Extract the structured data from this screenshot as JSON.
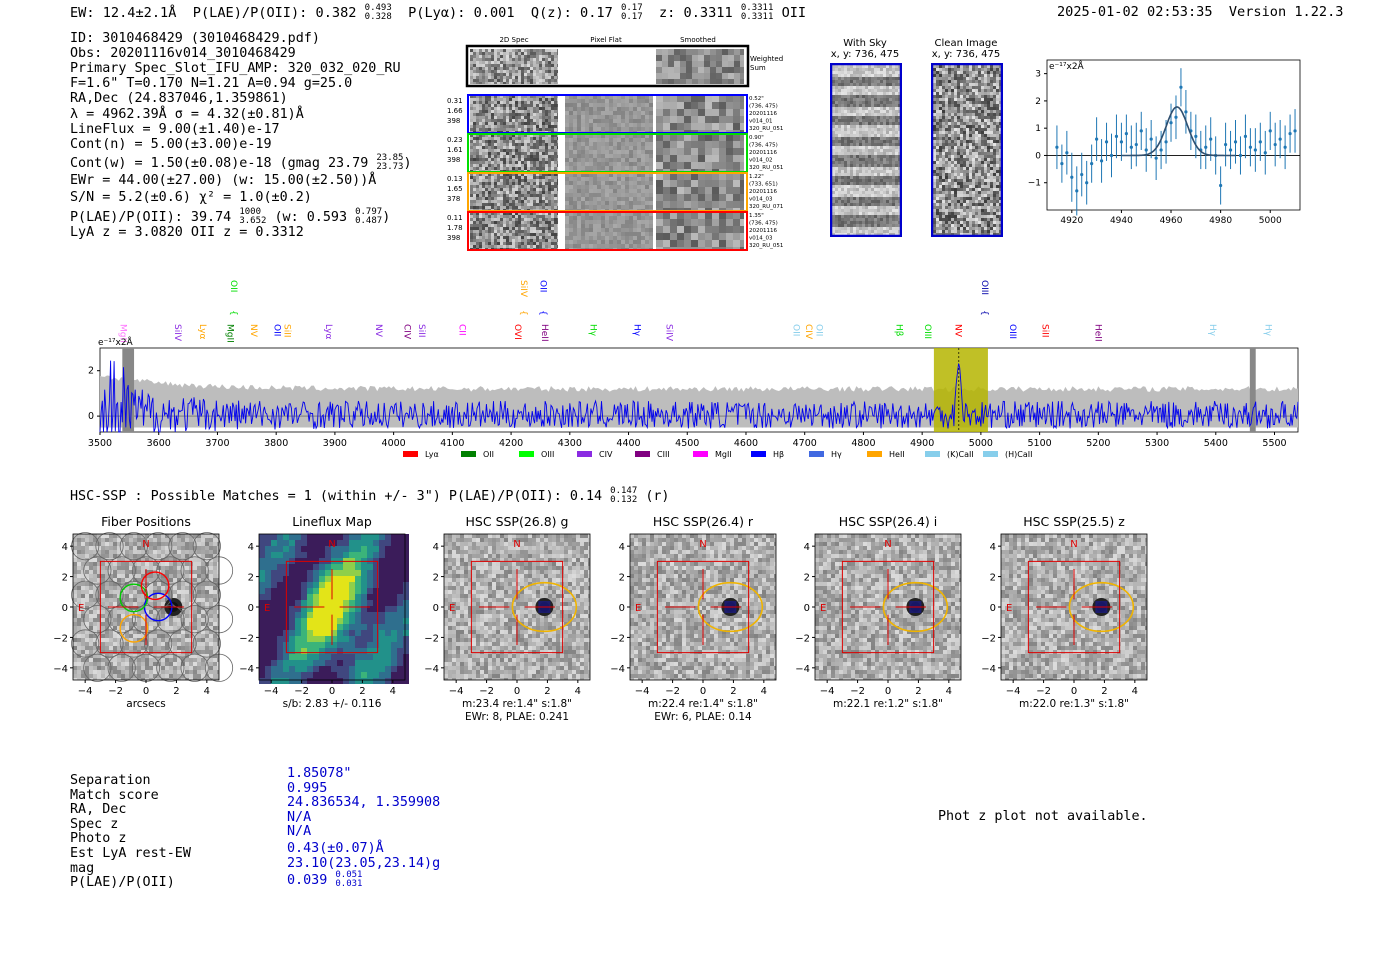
{
  "header": {
    "ew": "EW: 12.4±2.1Å",
    "plae": "P(LAE)/P(OII): 0.382",
    "plae_hi": "0.493",
    "plae_lo": "0.328",
    "plya": "P(Lyα): 0.001",
    "qz": "Q(z): 0.17",
    "qz_hi": "0.17",
    "qz_lo": "0.17",
    "z": "z: 0.3311",
    "z_hi": "0.3311",
    "z_lo": "0.3311",
    "line": "OII",
    "timestamp": "2025-01-02 02:53:35",
    "version": "Version 1.22.3"
  },
  "info": {
    "id": "ID: 3010468429 (3010468429.pdf)",
    "obs": "Obs: 20201116v014_3010468429",
    "primary": "Primary Spec_Slot_IFU_AMP: 320_032_020_RU",
    "fwhm": "F=1.6\"  T=0.170  N=1.21  A=0.94  g=25.0",
    "radec": "RA,Dec (24.837046,1.359861)",
    "lambda": "λ = 4962.39Å   σ = 4.32(±0.81)Å",
    "lineflux": "LineFlux = 9.00(±1.40)e-17",
    "contn": "Cont(n) = 5.00(±3.00)e-19",
    "contw": "Cont(w) = 1.50(±0.08)e-18 (gmag 23.79",
    "contw_hi": "23.85",
    "contw_lo": "23.73",
    "contw_end": ")",
    "ewr": "EWr = 44.00(±27.00) (w: 15.00(±2.50))Å",
    "sn": "S/N = 5.2(±0.6)  χ² = 1.0(±0.2)",
    "plae": "P(LAE)/P(OII): 39.74",
    "plae_hi": "1000",
    "plae_lo": "3.652",
    "plae_w": "(w: 0.593",
    "plae_w_hi": "0.797",
    "plae_w_lo": "0.487",
    "plae_w_end": ")",
    "lyaz": "LyA z = 3.0820  OII z = 0.3312"
  },
  "spec2d": {
    "col_labels": [
      "2D Spec",
      "Pixel Flat",
      "Smoothed"
    ],
    "weighted_label": "Weighted Sum",
    "rows": [
      {
        "stats": [
          "0.31",
          "1.66",
          "398"
        ],
        "info": [
          "0.52\"",
          "(736, 475)",
          "20201116",
          "v014_01",
          "320_RU_051"
        ],
        "color": "#0000ff"
      },
      {
        "stats": [
          "0.23",
          "1.61",
          "398"
        ],
        "info": [
          "0.90\"",
          "(736, 475)",
          "20201116",
          "v014_02",
          "320_RU_051"
        ],
        "color": "#00dd00"
      },
      {
        "stats": [
          "0.13",
          "1.65",
          "378"
        ],
        "info": [
          "1.22\"",
          "(733, 651)",
          "20201116",
          "v014_03",
          "320_RU_071"
        ],
        "color": "#ffa500"
      },
      {
        "stats": [
          "0.11",
          "1.78",
          "398"
        ],
        "info": [
          "1.35\"",
          "(736, 475)",
          "20201116",
          "v014_03",
          "320_RU_051"
        ],
        "color": "#ff0000"
      }
    ]
  },
  "sky": {
    "title": "With Sky",
    "coords": "x, y: 736, 475"
  },
  "clean": {
    "title": "Clean Image",
    "coords": "x, y: 736, 475"
  },
  "zoom_chart": {
    "type": "scatter",
    "unit_label": "e⁻¹⁷x2Å",
    "xlim": [
      4910,
      5012
    ],
    "ylim": [
      -2.0,
      3.5
    ],
    "xticks": [
      4920,
      4940,
      4960,
      4980,
      5000
    ],
    "yticks": [
      -1,
      0,
      1,
      2,
      3
    ],
    "fit": {
      "amp": 1.78,
      "center": 4962.4,
      "sigma": 4.32
    },
    "x": [
      4914,
      4916,
      4918,
      4920,
      4922,
      4924,
      4926,
      4928,
      4930,
      4932,
      4934,
      4936,
      4938,
      4940,
      4942,
      4944,
      4946,
      4948,
      4950,
      4952,
      4954,
      4956,
      4958,
      4960,
      4962,
      4964,
      4966,
      4968,
      4970,
      4972,
      4974,
      4976,
      4978,
      4980,
      4982,
      4984,
      4986,
      4988,
      4990,
      4992,
      4994,
      4996,
      4998,
      5000,
      5002,
      5004,
      5006,
      5008,
      5010
    ],
    "y": [
      0.3,
      -0.3,
      0.1,
      -0.8,
      -1.3,
      -0.7,
      -1.0,
      -0.3,
      0.6,
      -0.2,
      0.5,
      0.0,
      0.7,
      0.5,
      0.8,
      0.3,
      0.4,
      0.9,
      0.2,
      0.6,
      -0.1,
      0.2,
      0.5,
      1.2,
      1.4,
      2.5,
      1.6,
      0.9,
      0.7,
      0.2,
      0.3,
      0.6,
      0.0,
      -1.1,
      0.4,
      0.2,
      0.5,
      0.0,
      0.7,
      0.3,
      0.2,
      0.5,
      0.1,
      0.9,
      0.4,
      0.6,
      0.3,
      0.8,
      0.9
    ],
    "err": [
      0.8,
      0.7,
      0.8,
      0.9,
      0.9,
      0.8,
      0.8,
      0.7,
      0.8,
      0.8,
      0.7,
      0.8,
      0.8,
      0.7,
      0.7,
      0.8,
      0.8,
      0.7,
      0.8,
      0.7,
      0.8,
      0.7,
      0.8,
      0.7,
      0.8,
      0.7,
      0.8,
      0.7,
      0.8,
      0.7,
      0.8,
      0.8,
      0.7,
      0.7,
      0.8,
      0.7,
      0.8,
      0.7,
      0.8,
      0.7,
      0.8,
      0.7,
      0.8,
      0.7,
      0.8,
      0.7,
      0.8,
      0.7,
      0.8
    ]
  },
  "chart_data": {
    "type": "line",
    "title": "",
    "unit_label": "e⁻¹⁷x2Å",
    "xlim": [
      3500,
      5540
    ],
    "ylim": [
      -0.7,
      3.0
    ],
    "xticks": [
      3500,
      3600,
      3700,
      3800,
      3900,
      4000,
      4100,
      4200,
      4300,
      4400,
      4500,
      4600,
      4700,
      4800,
      4900,
      5000,
      5100,
      5200,
      5300,
      5400,
      5500
    ],
    "yticks": [
      0,
      2
    ],
    "highlight_band": [
      4920,
      5012
    ],
    "detection_wavelength": 4962.4,
    "masked": [
      [
        3538,
        3558
      ],
      [
        5458,
        5468
      ]
    ],
    "line_marks": [
      {
        "name": "MgII",
        "w": 3540,
        "color": "#ff00ff",
        "row": "hi",
        "pale": true
      },
      {
        "name": "SiIV",
        "w": 3633,
        "color": "#8a2be2",
        "row": "mid"
      },
      {
        "name": "Lyα",
        "w": 3675,
        "color": "#ffa500",
        "row": "mid"
      },
      {
        "name": "MgII",
        "w": 3722,
        "color": "#008000",
        "row": "mid"
      },
      {
        "name": "OII",
        "w": 3728,
        "color": "#00dd00",
        "row": "top"
      },
      {
        "name": "NV",
        "w": 3762,
        "color": "#ffa500",
        "row": "mid"
      },
      {
        "name": "OII",
        "w": 3802,
        "color": "#0000ff",
        "row": "mid"
      },
      {
        "name": "SiII",
        "w": 3819,
        "color": "#ffa500",
        "row": "mid"
      },
      {
        "name": "Lyα",
        "w": 3890,
        "color": "#8a2be2",
        "row": "mid"
      },
      {
        "name": "NV",
        "w": 3975,
        "color": "#8a2be2",
        "row": "mid"
      },
      {
        "name": "CIV",
        "w": 4024,
        "color": "#800080",
        "row": "mid"
      },
      {
        "name": "SiII",
        "w": 4048,
        "color": "#8a2be2",
        "row": "mid"
      },
      {
        "name": "CII",
        "w": 4117,
        "color": "#ff00ff",
        "row": "mid"
      },
      {
        "name": "SiIV",
        "w": 4222,
        "color": "#ffa500",
        "row": "top"
      },
      {
        "name": "OVI",
        "w": 4212,
        "color": "#ff0000",
        "row": "mid"
      },
      {
        "name": "OII",
        "w": 4255,
        "color": "#0000ff",
        "row": "top"
      },
      {
        "name": "HeII",
        "w": 4258,
        "color": "#800080",
        "row": "mid"
      },
      {
        "name": "Hγ",
        "w": 4340,
        "color": "#00dd00",
        "row": "mid"
      },
      {
        "name": "Hγ",
        "w": 4415,
        "color": "#0000ff",
        "row": "mid"
      },
      {
        "name": "SiIV",
        "w": 4470,
        "color": "#8a2be2",
        "row": "mid"
      },
      {
        "name": "OII",
        "w": 4686,
        "color": "#87ceeb",
        "row": "mid"
      },
      {
        "name": "CIV",
        "w": 4707,
        "color": "#ffa500",
        "row": "mid"
      },
      {
        "name": "OII",
        "w": 4725,
        "color": "#87ceeb",
        "row": "mid"
      },
      {
        "name": "Hβ",
        "w": 4861,
        "color": "#00dd00",
        "row": "mid"
      },
      {
        "name": "OIII",
        "w": 4910,
        "color": "#00dd00",
        "row": "mid"
      },
      {
        "name": "NV",
        "w": 4962,
        "color": "#ff0000",
        "row": "mid"
      },
      {
        "name": "OIII",
        "w": 5007,
        "color": "#0000aa",
        "row": "top"
      },
      {
        "name": "OIII",
        "w": 5055,
        "color": "#0000ff",
        "row": "mid"
      },
      {
        "name": "SiII",
        "w": 5110,
        "color": "#ff0000",
        "row": "mid"
      },
      {
        "name": "HeII",
        "w": 5200,
        "color": "#800080",
        "row": "mid"
      },
      {
        "name": "Hγ",
        "w": 5395,
        "color": "#87ceeb",
        "row": "mid"
      },
      {
        "name": "Hγ",
        "w": 5490,
        "color": "#87ceeb",
        "row": "mid"
      }
    ],
    "legend": [
      {
        "label": "Lyα",
        "color": "#ff0000"
      },
      {
        "label": "OII",
        "color": "#008000"
      },
      {
        "label": "OIII",
        "color": "#00ff00"
      },
      {
        "label": "CIV",
        "color": "#8a2be2"
      },
      {
        "label": "CIII",
        "color": "#800080"
      },
      {
        "label": "MgII",
        "color": "#ff00ff"
      },
      {
        "label": "Hβ",
        "color": "#0000ff"
      },
      {
        "label": "Hγ",
        "color": "#4169e1"
      },
      {
        "label": "HeII",
        "color": "#ffa500"
      },
      {
        "label": "(K)CaII",
        "color": "#87ceeb"
      },
      {
        "label": "(H)CaII",
        "color": "#87ceeb"
      }
    ]
  },
  "hsc": {
    "headline": "HSC-SSP : Possible Matches = 1 (within +/- 3\")  P(LAE)/P(OII): 0.14",
    "headline_hi": "0.147",
    "headline_lo": "0.132",
    "headline_band": "(r)",
    "panels": [
      {
        "title": "Fiber Positions",
        "cap1": "arcsecs",
        "cap2": ""
      },
      {
        "title": "Lineflux Map",
        "cap1": "s/b: 2.83 +/- 0.116",
        "cap2": ""
      },
      {
        "title": "HSC SSP(26.8) g",
        "cap1": "m:23.4  re:1.4\"  s:1.8\"",
        "cap2": "EWr: 8, PLAE: 0.241"
      },
      {
        "title": "HSC SSP(26.4) r",
        "cap1": "m:22.4  re:1.4\"  s:1.8\"",
        "cap2": "EWr: 6, PLAE: 0.14"
      },
      {
        "title": "HSC SSP(26.4) i",
        "cap1": "m:22.1  re:1.2\"  s:1.8\"",
        "cap2": ""
      },
      {
        "title": "HSC SSP(25.5) z",
        "cap1": "m:22.0  re:1.3\"  s:1.8\"",
        "cap2": ""
      }
    ],
    "axis_ticks": [
      "−4",
      "−2",
      "0",
      "2",
      "4"
    ],
    "compass_n": "N",
    "compass_e": "E"
  },
  "summary": {
    "labels": [
      "Separation",
      "Match score",
      "RA, Dec",
      "Spec z",
      "Photo z",
      "Est LyA rest-EW",
      "mag",
      "P(LAE)/P(OII)"
    ],
    "values": [
      "1.85078\"",
      "0.995",
      "24.836534, 1.359908",
      "N/A",
      "N/A",
      "0.43(±0.07)Å",
      "23.10(23.05,23.14)g",
      "0.039"
    ],
    "plae_hi": "0.051",
    "plae_lo": "0.031",
    "photz_note": "Phot z plot not available."
  }
}
